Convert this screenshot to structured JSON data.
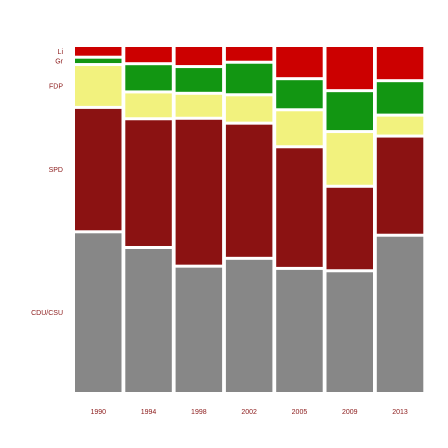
{
  "chart_data": {
    "type": "bar",
    "subtype": "stacked-100-percent",
    "categories": [
      "1990",
      "1994",
      "1998",
      "2002",
      "2005",
      "2009",
      "2013"
    ],
    "series": [
      {
        "name": "CDU/CSU",
        "values": [
          43.8,
          41.4,
          35.1,
          38.5,
          35.2,
          33.8,
          41.5
        ]
      },
      {
        "name": "SPD",
        "values": [
          33.5,
          36.4,
          40.9,
          38.5,
          34.2,
          23.0,
          25.7
        ]
      },
      {
        "name": "FDP",
        "values": [
          11.0,
          6.9,
          6.2,
          7.4,
          9.8,
          14.6,
          4.8
        ]
      },
      {
        "name": "Gr",
        "values": [
          1.2,
          7.3,
          6.7,
          8.6,
          8.1,
          10.7,
          8.4
        ]
      },
      {
        "name": "Li",
        "values": [
          2.4,
          4.4,
          5.1,
          4.0,
          8.7,
          11.9,
          8.6
        ]
      }
    ],
    "colors": {
      "CDU/CSU": "#878787",
      "SPD": "#8b1212",
      "FDP": "#f2f27e",
      "Gr": "#129612",
      "Li": "#cc0000",
      "label_text": "#8b1a1a"
    },
    "legend_placement": "left, labels aligned with segments of first bar",
    "grid": false,
    "title": "",
    "xlabel": "",
    "ylabel": ""
  }
}
